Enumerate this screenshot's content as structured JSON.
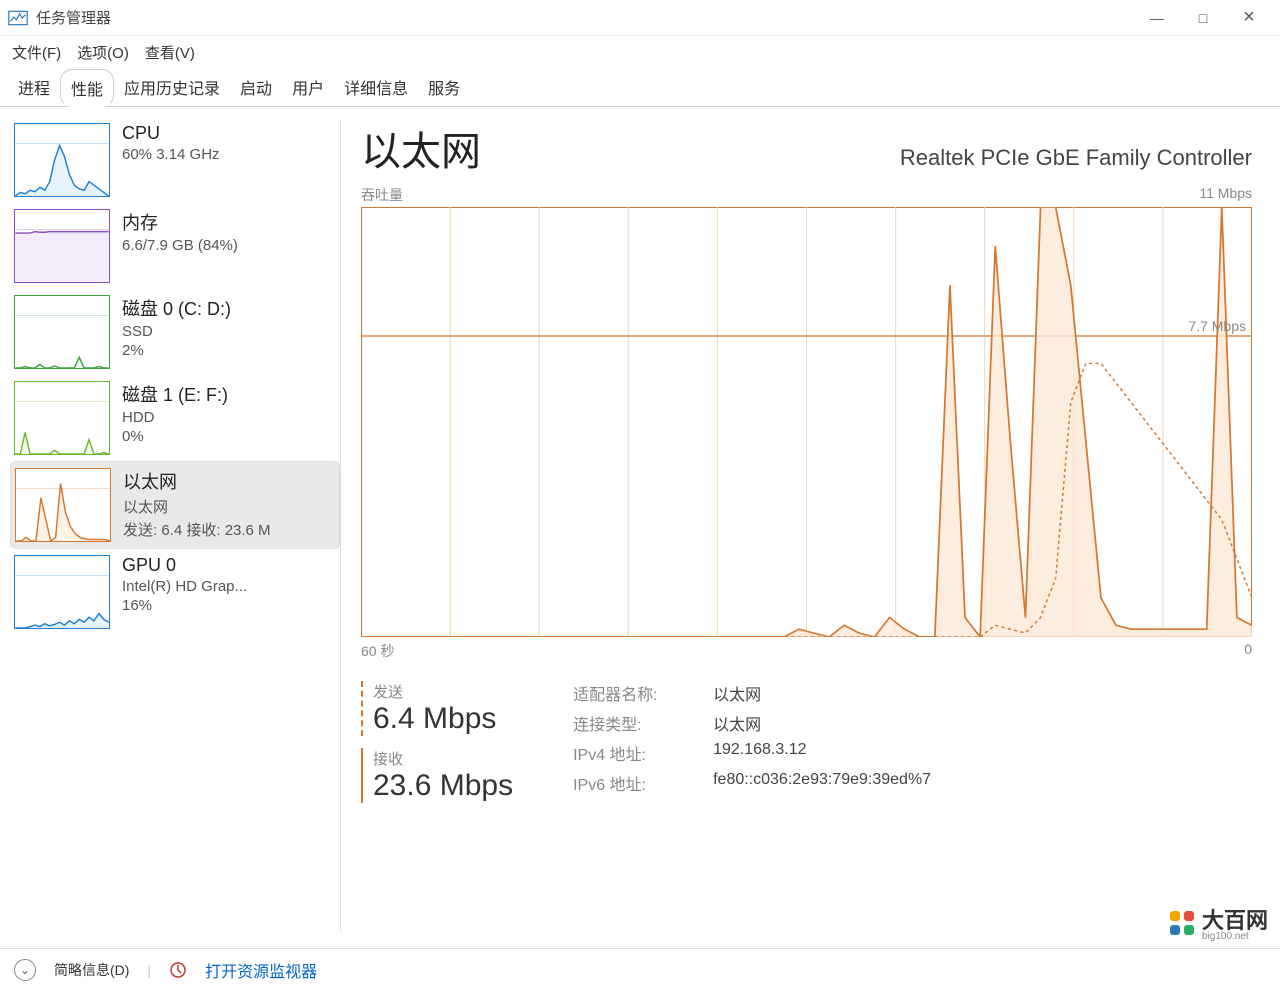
{
  "window": {
    "title": "任务管理器",
    "controls": {
      "min": "—",
      "max": "□",
      "close": "×"
    }
  },
  "menu": {
    "file": "文件(F)",
    "options": "选项(O)",
    "view": "查看(V)"
  },
  "tabs": {
    "processes": "进程",
    "performance": "性能",
    "app_history": "应用历史记录",
    "startup": "启动",
    "users": "用户",
    "details": "详细信息",
    "services": "服务",
    "active": "performance"
  },
  "sidebar": [
    {
      "id": "cpu",
      "title": "CPU",
      "line1": "60%  3.14 GHz",
      "color": "#1e7fd6",
      "fill": "#e6f2fd",
      "spark": [
        0,
        5,
        3,
        8,
        6,
        12,
        8,
        20,
        50,
        70,
        55,
        30,
        15,
        10,
        8,
        20,
        15,
        10,
        5,
        0
      ]
    },
    {
      "id": "memory",
      "title": "内存",
      "line1": "6.6/7.9 GB (84%)",
      "color": "#8a4bc9",
      "fill": "#f3ecfb",
      "spark": [
        68,
        68,
        68,
        68,
        70,
        69,
        69,
        70,
        70,
        70,
        70,
        70,
        70,
        70,
        70,
        70,
        70,
        70,
        70,
        70
      ]
    },
    {
      "id": "disk0",
      "title": "磁盘 0 (C: D:)",
      "line1": "SSD",
      "line2": "2%",
      "color": "#3aa53a",
      "fill": "#edf8ed",
      "spark": [
        0,
        0,
        2,
        0,
        0,
        5,
        0,
        0,
        3,
        0,
        0,
        0,
        0,
        15,
        0,
        0,
        0,
        2,
        0,
        0
      ]
    },
    {
      "id": "disk1",
      "title": "磁盘 1 (E: F:)",
      "line1": "HDD",
      "line2": "0%",
      "color": "#6ab82e",
      "fill": "#f2fae9",
      "spark": [
        0,
        0,
        30,
        0,
        0,
        0,
        0,
        0,
        5,
        0,
        0,
        0,
        0,
        0,
        0,
        20,
        0,
        0,
        2,
        0
      ]
    },
    {
      "id": "ethernet",
      "title": "以太网",
      "line1": "以太网",
      "line2": "发送: 6.4  接收: 23.6 M",
      "color": "#d4772f",
      "fill": "#fdf2e7",
      "selected": true,
      "spark": [
        0,
        0,
        5,
        0,
        0,
        60,
        30,
        0,
        5,
        80,
        40,
        20,
        10,
        5,
        3,
        2,
        2,
        2,
        2,
        0
      ]
    },
    {
      "id": "gpu0",
      "title": "GPU 0",
      "line1": "Intel(R) HD Grap...",
      "line2": "16%",
      "color": "#1e7fd6",
      "fill": "#e6f2fd",
      "spark": [
        0,
        0,
        0,
        2,
        4,
        2,
        6,
        3,
        5,
        8,
        4,
        10,
        6,
        12,
        8,
        15,
        10,
        20,
        12,
        8
      ]
    }
  ],
  "main": {
    "heading": "以太网",
    "adapter": "Realtek PCIe GbE Family Controller",
    "chart": {
      "throughput_label": "吞吐量",
      "max_label": "11 Mbps",
      "marker_label": "7.7 Mbps",
      "x_left": "60 秒",
      "x_right": "0",
      "color": "#d4772f",
      "fill": "#fbe9d6",
      "grid_color": "#f2d8bd",
      "y_max": 11,
      "marker_y": 7.7,
      "receive": [
        0,
        0,
        0,
        0,
        0,
        0,
        0,
        0,
        0,
        0,
        0,
        0,
        0,
        0,
        0,
        0,
        0,
        0,
        0,
        0,
        0,
        0,
        0,
        0,
        0,
        0,
        0,
        0,
        0,
        0.2,
        0.1,
        0,
        0.3,
        0.1,
        0,
        0.5,
        0.2,
        0,
        0,
        9,
        0.5,
        0,
        10,
        5,
        0.5,
        14,
        14,
        9,
        5,
        1,
        0.3,
        0.2,
        0.2,
        0.2,
        0.2,
        0.2,
        0.2,
        14,
        0.5,
        0.3
      ],
      "send": [
        0,
        0,
        0,
        0,
        0,
        0,
        0,
        0,
        0,
        0,
        0,
        0,
        0,
        0,
        0,
        0,
        0,
        0,
        0,
        0,
        0,
        0,
        0,
        0,
        0,
        0,
        0,
        0,
        0,
        0,
        0,
        0,
        0,
        0,
        0,
        0,
        0,
        0,
        0,
        0,
        0,
        0,
        0.3,
        0.2,
        0.1,
        0.5,
        1.5,
        6,
        7,
        7,
        6.5,
        6,
        5.5,
        5,
        4.5,
        4,
        3.5,
        3,
        2,
        1
      ]
    },
    "stats": {
      "send_label": "发送",
      "send_value": "6.4 Mbps",
      "recv_label": "接收",
      "recv_value": "23.6 Mbps"
    },
    "info": {
      "adapter_name_k": "适配器名称:",
      "adapter_name_v": "以太网",
      "conn_type_k": "连接类型:",
      "conn_type_v": "以太网",
      "ipv4_k": "IPv4 地址:",
      "ipv4_v": "192.168.3.12",
      "ipv6_k": "IPv6 地址:",
      "ipv6_v": "fe80::c036:2e93:79e9:39ed%7"
    }
  },
  "footer": {
    "fewer": "简略信息(D)",
    "resmon": "打开资源监视器"
  },
  "watermark": {
    "text": "大百网",
    "sub": "big100.net"
  }
}
